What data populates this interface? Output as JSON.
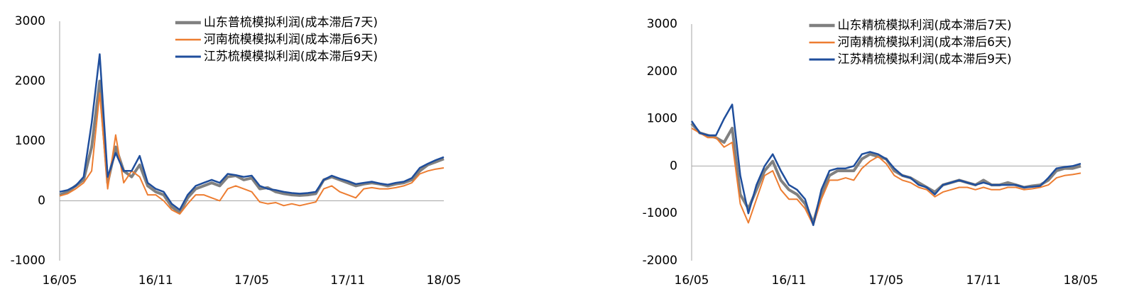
{
  "chart_data": [
    {
      "type": "line",
      "x": [
        0,
        0.5,
        1,
        1.5,
        2,
        2.5,
        3,
        3.5,
        4,
        4.5,
        5,
        5.5,
        6,
        6.5,
        7,
        7.5,
        8,
        8.5,
        9,
        9.5,
        10,
        10.5,
        11,
        11.5,
        12,
        12.5,
        13,
        13.5,
        14,
        14.5,
        15,
        15.5,
        16,
        16.5,
        17,
        17.5,
        18,
        18.5,
        19,
        19.5,
        20,
        20.5,
        21,
        21.5,
        22,
        22.5,
        23,
        23.5,
        24
      ],
      "xlim": [
        0,
        24
      ],
      "xticks": [
        {
          "value": 0,
          "label": "16/05"
        },
        {
          "value": 6,
          "label": "16/11"
        },
        {
          "value": 12,
          "label": "17/05"
        },
        {
          "value": 18,
          "label": "17/11"
        },
        {
          "value": 24,
          "label": "18/05"
        }
      ],
      "ylim": [
        -1000,
        3000
      ],
      "yticks": [
        -1000,
        0,
        1000,
        2000,
        3000
      ],
      "legend": "upper center",
      "series": [
        {
          "name": "山东普梳模拟利润(成本滞后7天)",
          "color": "#808080",
          "width": 4,
          "values": [
            100,
            150,
            250,
            350,
            900,
            2000,
            300,
            900,
            500,
            400,
            600,
            250,
            150,
            100,
            -100,
            -200,
            50,
            200,
            250,
            300,
            250,
            400,
            420,
            350,
            380,
            200,
            220,
            150,
            120,
            100,
            90,
            100,
            120,
            350,
            400,
            350,
            300,
            250,
            280,
            300,
            280,
            250,
            280,
            300,
            350,
            500,
            600,
            650,
            700
          ]
        },
        {
          "name": "河南梳模模拟利润(成本滞后6天)",
          "color": "#ed7d31",
          "width": 2,
          "values": [
            80,
            120,
            200,
            300,
            500,
            1800,
            200,
            1100,
            300,
            500,
            400,
            100,
            100,
            0,
            -150,
            -220,
            -50,
            100,
            100,
            50,
            0,
            200,
            250,
            200,
            150,
            -20,
            -50,
            -30,
            -80,
            -50,
            -80,
            -50,
            -20,
            200,
            250,
            150,
            100,
            50,
            200,
            220,
            200,
            200,
            220,
            250,
            300,
            450,
            500,
            530,
            550
          ]
        },
        {
          "name": "江苏梳模模拟利润(成本滞后9天)",
          "color": "#1f4e9c",
          "width": 2.5,
          "values": [
            150,
            180,
            250,
            400,
            1300,
            2450,
            400,
            800,
            500,
            500,
            750,
            300,
            200,
            150,
            -50,
            -150,
            100,
            250,
            300,
            350,
            300,
            450,
            430,
            400,
            420,
            250,
            200,
            180,
            150,
            130,
            120,
            130,
            150,
            350,
            420,
            370,
            330,
            280,
            300,
            320,
            290,
            270,
            300,
            320,
            380,
            550,
            620,
            680,
            730
          ]
        }
      ]
    },
    {
      "type": "line",
      "x": [
        0,
        0.5,
        1,
        1.5,
        2,
        2.5,
        3,
        3.5,
        4,
        4.5,
        5,
        5.5,
        6,
        6.5,
        7,
        7.5,
        8,
        8.5,
        9,
        9.5,
        10,
        10.5,
        11,
        11.5,
        12,
        12.5,
        13,
        13.5,
        14,
        14.5,
        15,
        15.5,
        16,
        16.5,
        17,
        17.5,
        18,
        18.5,
        19,
        19.5,
        20,
        20.5,
        21,
        21.5,
        22,
        22.5,
        23,
        23.5,
        24
      ],
      "xlim": [
        0,
        24
      ],
      "xticks": [
        {
          "value": 0,
          "label": "16/05"
        },
        {
          "value": 6,
          "label": "16/11"
        },
        {
          "value": 12,
          "label": "17/05"
        },
        {
          "value": 18,
          "label": "17/11"
        },
        {
          "value": 24,
          "label": "18/05"
        }
      ],
      "ylim": [
        -2000,
        3000
      ],
      "yticks": [
        -2000,
        -1000,
        0,
        1000,
        2000,
        3000
      ],
      "legend": "upper center",
      "series": [
        {
          "name": "山东精梳模拟利润(成本滞后7天)",
          "color": "#808080",
          "width": 4,
          "values": [
            900,
            700,
            650,
            600,
            500,
            800,
            -600,
            -900,
            -500,
            -100,
            100,
            -300,
            -500,
            -600,
            -800,
            -1200,
            -600,
            -200,
            -100,
            -100,
            -100,
            150,
            250,
            200,
            150,
            -100,
            -200,
            -250,
            -350,
            -450,
            -550,
            -400,
            -350,
            -300,
            -350,
            -400,
            -300,
            -400,
            -400,
            -350,
            -400,
            -450,
            -420,
            -400,
            -300,
            -100,
            -50,
            -50,
            0
          ]
        },
        {
          "name": "河南精梳模拟利润(成本滞后6天)",
          "color": "#ed7d31",
          "width": 2,
          "values": [
            800,
            700,
            600,
            600,
            400,
            500,
            -800,
            -1200,
            -700,
            -200,
            -100,
            -500,
            -700,
            -700,
            -900,
            -1250,
            -700,
            -300,
            -300,
            -250,
            -300,
            -50,
            100,
            200,
            50,
            -200,
            -300,
            -350,
            -450,
            -500,
            -650,
            -550,
            -500,
            -450,
            -450,
            -500,
            -450,
            -500,
            -500,
            -450,
            -450,
            -500,
            -480,
            -450,
            -400,
            -250,
            -200,
            -180,
            -150
          ]
        },
        {
          "name": "江苏精梳模拟利润(成本滞后9天)",
          "color": "#1f4e9c",
          "width": 2.5,
          "values": [
            950,
            700,
            650,
            650,
            1000,
            1300,
            -200,
            -1000,
            -400,
            0,
            250,
            -100,
            -400,
            -500,
            -700,
            -1250,
            -500,
            -100,
            -50,
            -50,
            0,
            250,
            300,
            250,
            150,
            -50,
            -200,
            -250,
            -400,
            -450,
            -600,
            -400,
            -350,
            -300,
            -350,
            -400,
            -350,
            -400,
            -400,
            -400,
            -400,
            -450,
            -440,
            -420,
            -250,
            -50,
            -20,
            0,
            50
          ]
        }
      ]
    }
  ]
}
